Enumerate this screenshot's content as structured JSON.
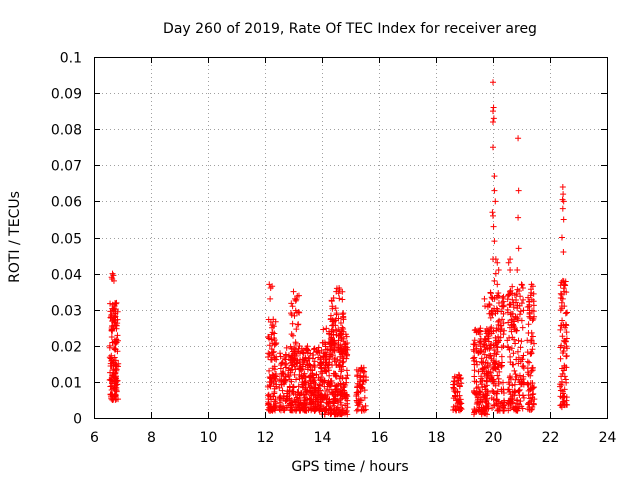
{
  "chart_data": {
    "type": "scatter",
    "title": "Day 260 of 2019, Rate Of TEC Index for receiver areg",
    "xlabel": "GPS time / hours",
    "ylabel": "ROTI / TECUs",
    "xlim": [
      6,
      24
    ],
    "ylim": [
      0,
      0.1
    ],
    "x_ticks": [
      "6",
      "8",
      "10",
      "12",
      "14",
      "16",
      "18",
      "20",
      "22",
      "24"
    ],
    "y_ticks": [
      "0",
      "0.01",
      "0.02",
      "0.03",
      "0.04",
      "0.05",
      "0.06",
      "0.07",
      "0.08",
      "0.09",
      "0.1"
    ],
    "grid": true,
    "marker": "+",
    "color": "#ff0000",
    "clusters": [
      {
        "x_range": [
          6.55,
          6.85
        ],
        "y_range": [
          0.005,
          0.032
        ],
        "count": 150
      },
      {
        "x_range": [
          12.1,
          12.4
        ],
        "y_range": [
          0.002,
          0.028
        ],
        "count": 100
      },
      {
        "x_range": [
          12.5,
          13.3
        ],
        "y_range": [
          0.002,
          0.02
        ],
        "count": 170
      },
      {
        "x_range": [
          12.9,
          13.2
        ],
        "y_range": [
          0.015,
          0.035
        ],
        "count": 35
      },
      {
        "x_range": [
          13.3,
          14.0
        ],
        "y_range": [
          0.002,
          0.02
        ],
        "count": 220
      },
      {
        "x_range": [
          14.0,
          14.9
        ],
        "y_range": [
          0.001,
          0.025
        ],
        "count": 280
      },
      {
        "x_range": [
          14.3,
          14.8
        ],
        "y_range": [
          0.018,
          0.036
        ],
        "count": 60
      },
      {
        "x_range": [
          15.2,
          15.55
        ],
        "y_range": [
          0.002,
          0.014
        ],
        "count": 60
      },
      {
        "x_range": [
          18.6,
          18.9
        ],
        "y_range": [
          0.002,
          0.012
        ],
        "count": 55
      },
      {
        "x_range": [
          19.3,
          19.8
        ],
        "y_range": [
          0.001,
          0.025
        ],
        "count": 150
      },
      {
        "x_range": [
          19.8,
          20.4
        ],
        "y_range": [
          0.002,
          0.035
        ],
        "count": 180
      },
      {
        "x_range": [
          20.5,
          21.1
        ],
        "y_range": [
          0.002,
          0.037
        ],
        "count": 160
      },
      {
        "x_range": [
          21.2,
          21.45
        ],
        "y_range": [
          0.002,
          0.036
        ],
        "count": 80
      },
      {
        "x_range": [
          22.35,
          22.6
        ],
        "y_range": [
          0.003,
          0.038
        ],
        "count": 80
      }
    ],
    "points": [
      [
        6.62,
        0.039
      ],
      [
        6.65,
        0.04
      ],
      [
        6.68,
        0.0395
      ],
      [
        6.7,
        0.038
      ],
      [
        6.64,
        0.0385
      ],
      [
        12.15,
        0.037
      ],
      [
        12.2,
        0.036
      ],
      [
        12.25,
        0.0365
      ],
      [
        12.18,
        0.033
      ],
      [
        13.0,
        0.035
      ],
      [
        13.05,
        0.033
      ],
      [
        14.5,
        0.035
      ],
      [
        14.6,
        0.036
      ],
      [
        14.62,
        0.0355
      ],
      [
        19.7,
        0.033
      ],
      [
        19.72,
        0.031
      ],
      [
        20.0,
        0.093
      ],
      [
        20.02,
        0.086
      ],
      [
        20.0,
        0.085
      ],
      [
        20.03,
        0.083
      ],
      [
        20.0,
        0.082
      ],
      [
        20.0,
        0.075
      ],
      [
        20.05,
        0.067
      ],
      [
        20.05,
        0.063
      ],
      [
        20.08,
        0.06
      ],
      [
        19.98,
        0.057
      ],
      [
        20.0,
        0.056
      ],
      [
        20.02,
        0.053
      ],
      [
        20.05,
        0.049
      ],
      [
        20.1,
        0.044
      ],
      [
        20.0,
        0.044
      ],
      [
        20.15,
        0.043
      ],
      [
        20.1,
        0.04
      ],
      [
        20.2,
        0.041
      ],
      [
        20.05,
        0.038
      ],
      [
        20.15,
        0.037
      ],
      [
        20.6,
        0.044
      ],
      [
        20.55,
        0.043
      ],
      [
        20.6,
        0.041
      ],
      [
        20.88,
        0.0775
      ],
      [
        20.9,
        0.063
      ],
      [
        20.88,
        0.0555
      ],
      [
        20.9,
        0.047
      ],
      [
        20.85,
        0.041
      ],
      [
        21.0,
        0.037
      ],
      [
        21.05,
        0.036
      ],
      [
        21.35,
        0.037
      ],
      [
        21.4,
        0.0365
      ],
      [
        22.45,
        0.064
      ],
      [
        22.46,
        0.062
      ],
      [
        22.44,
        0.0605
      ],
      [
        22.48,
        0.06
      ],
      [
        22.45,
        0.058
      ],
      [
        22.48,
        0.055
      ],
      [
        22.42,
        0.05
      ],
      [
        22.47,
        0.046
      ],
      [
        22.45,
        0.038
      ],
      [
        22.5,
        0.035
      ],
      [
        22.45,
        0.033
      ],
      [
        22.5,
        0.031
      ]
    ]
  }
}
